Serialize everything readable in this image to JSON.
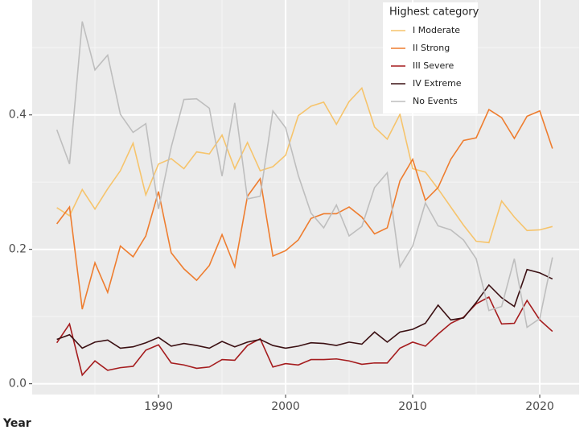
{
  "chart_data": {
    "type": "line",
    "x_label": "Year",
    "x": [
      1982,
      1983,
      1984,
      1985,
      1986,
      1987,
      1988,
      1989,
      1990,
      1991,
      1992,
      1993,
      1994,
      1995,
      1996,
      1997,
      1998,
      1999,
      2000,
      2001,
      2002,
      2003,
      2004,
      2005,
      2006,
      2007,
      2008,
      2009,
      2010,
      2011,
      2012,
      2013,
      2014,
      2015,
      2016,
      2017,
      2018,
      2019,
      2020,
      2021
    ],
    "xlim": [
      1980.06,
      2023.1
    ],
    "xticks": [
      1990,
      2000,
      2010,
      2020
    ],
    "ylim": [
      -0.016,
      0.571
    ],
    "yticks": [
      {
        "value": 0,
        "label": "0.0"
      },
      0.2,
      0.4
    ],
    "grid": true,
    "legend_title": "Highest category",
    "legend_position": "top-right",
    "series": [
      {
        "name": "I Moderate",
        "color": "#f6c46c",
        "values": [
          0.262,
          0.25,
          0.289,
          0.26,
          0.29,
          0.317,
          0.358,
          0.281,
          0.327,
          0.335,
          0.32,
          0.345,
          0.342,
          0.37,
          0.32,
          0.359,
          0.317,
          0.323,
          0.34,
          0.399,
          0.413,
          0.419,
          0.386,
          0.42,
          0.44,
          0.382,
          0.364,
          0.401,
          0.32,
          0.315,
          0.29,
          0.263,
          0.236,
          0.212,
          0.21,
          0.272,
          0.248,
          0.228,
          0.229,
          0.234
        ]
      },
      {
        "name": "II Strong",
        "color": "#ee7d2f",
        "values": [
          0.238,
          0.263,
          0.111,
          0.18,
          0.136,
          0.205,
          0.189,
          0.22,
          0.286,
          0.195,
          0.171,
          0.154,
          0.176,
          0.222,
          0.174,
          0.279,
          0.305,
          0.19,
          0.198,
          0.214,
          0.246,
          0.253,
          0.253,
          0.263,
          0.248,
          0.223,
          0.232,
          0.302,
          0.334,
          0.273,
          0.292,
          0.334,
          0.362,
          0.366,
          0.408,
          0.396,
          0.365,
          0.398,
          0.406,
          0.35
        ]
      },
      {
        "name": "III Severe",
        "color": "#a51c1e",
        "values": [
          0.061,
          0.089,
          0.013,
          0.034,
          0.02,
          0.024,
          0.026,
          0.05,
          0.058,
          0.031,
          0.028,
          0.023,
          0.025,
          0.036,
          0.035,
          0.057,
          0.067,
          0.025,
          0.03,
          0.028,
          0.036,
          0.036,
          0.037,
          0.034,
          0.029,
          0.031,
          0.031,
          0.053,
          0.062,
          0.056,
          0.074,
          0.09,
          0.099,
          0.119,
          0.129,
          0.089,
          0.09,
          0.124,
          0.095,
          0.078
        ]
      },
      {
        "name": "IV Extreme",
        "color": "#3b1013",
        "values": [
          0.066,
          0.073,
          0.053,
          0.062,
          0.065,
          0.053,
          0.055,
          0.061,
          0.069,
          0.056,
          0.06,
          0.057,
          0.053,
          0.063,
          0.055,
          0.062,
          0.066,
          0.057,
          0.053,
          0.056,
          0.061,
          0.06,
          0.057,
          0.062,
          0.059,
          0.077,
          0.062,
          0.077,
          0.081,
          0.09,
          0.117,
          0.095,
          0.098,
          0.121,
          0.147,
          0.128,
          0.115,
          0.17,
          0.165,
          0.156
        ]
      },
      {
        "name": "No Events",
        "color": "#bebebe",
        "values": [
          0.378,
          0.327,
          0.539,
          0.467,
          0.489,
          0.401,
          0.374,
          0.387,
          0.26,
          0.352,
          0.423,
          0.424,
          0.41,
          0.309,
          0.418,
          0.275,
          0.279,
          0.406,
          0.381,
          0.31,
          0.254,
          0.232,
          0.266,
          0.22,
          0.234,
          0.292,
          0.314,
          0.174,
          0.205,
          0.269,
          0.235,
          0.229,
          0.214,
          0.186,
          0.109,
          0.115,
          0.186,
          0.084,
          0.097,
          0.188
        ]
      }
    ]
  }
}
